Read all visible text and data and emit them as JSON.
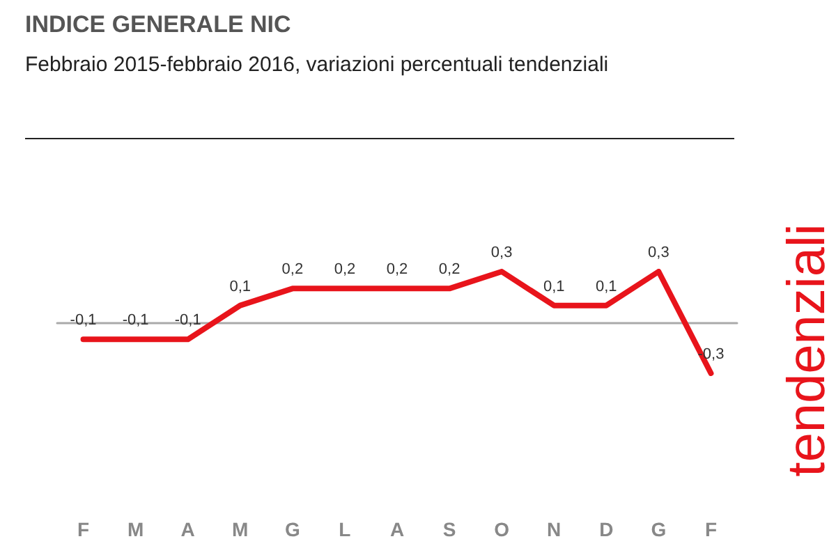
{
  "chart_data": {
    "type": "line",
    "title": "INDICE GENERALE NIC",
    "subtitle": "Febbraio 2015-febbraio 2016, variazioni percentuali tendenziali",
    "categories": [
      "F",
      "M",
      "A",
      "M",
      "G",
      "L",
      "A",
      "S",
      "O",
      "N",
      "D",
      "G",
      "F"
    ],
    "series": [
      {
        "color": "#e8141b",
        "values": [
          -0.1,
          -0.1,
          -0.1,
          0.1,
          0.2,
          0.2,
          0.2,
          0.2,
          0.3,
          0.1,
          0.1,
          0.3,
          -0.3
        ],
        "value_labels": [
          "-0,1",
          "-0,1",
          "-0,1",
          "0,1",
          "0,2",
          "0,2",
          "0,2",
          "0,2",
          "0,3",
          "0,1",
          "0,1",
          "0,3",
          "-0,3"
        ]
      }
    ],
    "marker": "none",
    "line_style": "solid",
    "annotations": [
      "tendenziali"
    ]
  }
}
